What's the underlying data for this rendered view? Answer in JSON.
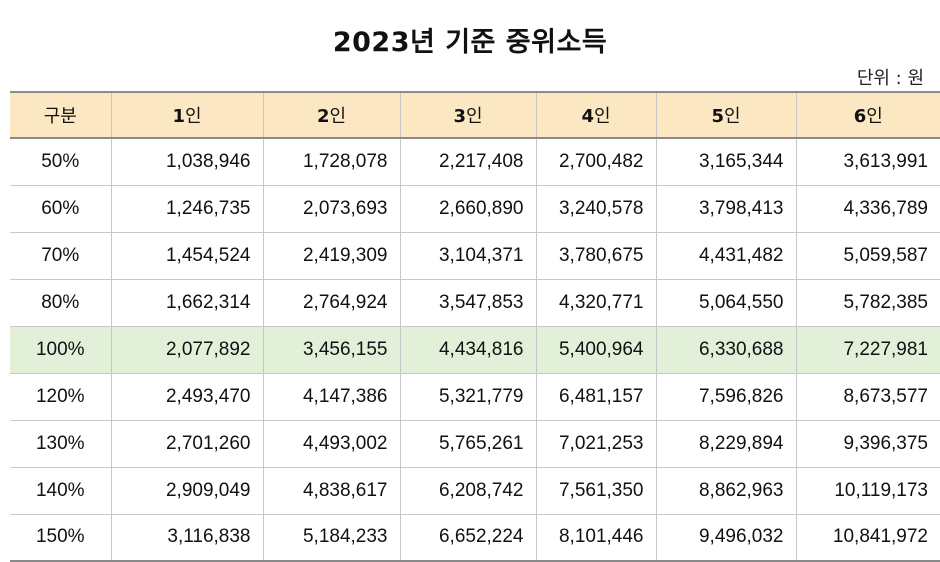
{
  "title": "2023년 기준 중위소득",
  "unit_label": "단위 : 원",
  "colors": {
    "header_bg": "#fbe8c2",
    "highlight_row_bg": "#e2efd9"
  },
  "table": {
    "headers": [
      {
        "text": "구분"
      },
      {
        "num": "1",
        "suffix": "인"
      },
      {
        "num": "2",
        "suffix": "인"
      },
      {
        "num": "3",
        "suffix": "인"
      },
      {
        "num": "4",
        "suffix": "인"
      },
      {
        "num": "5",
        "suffix": "인"
      },
      {
        "num": "6",
        "suffix": "인"
      }
    ],
    "highlighted_row": "100%",
    "rows": [
      {
        "label": "50%",
        "values": [
          "1,038,946",
          "1,728,078",
          "2,217,408",
          "2,700,482",
          "3,165,344",
          "3,613,991"
        ]
      },
      {
        "label": "60%",
        "values": [
          "1,246,735",
          "2,073,693",
          "2,660,890",
          "3,240,578",
          "3,798,413",
          "4,336,789"
        ]
      },
      {
        "label": "70%",
        "values": [
          "1,454,524",
          "2,419,309",
          "3,104,371",
          "3,780,675",
          "4,431,482",
          "5,059,587"
        ]
      },
      {
        "label": "80%",
        "values": [
          "1,662,314",
          "2,764,924",
          "3,547,853",
          "4,320,771",
          "5,064,550",
          "5,782,385"
        ]
      },
      {
        "label": "100%",
        "values": [
          "2,077,892",
          "3,456,155",
          "4,434,816",
          "5,400,964",
          "6,330,688",
          "7,227,981"
        ]
      },
      {
        "label": "120%",
        "values": [
          "2,493,470",
          "4,147,386",
          "5,321,779",
          "6,481,157",
          "7,596,826",
          "8,673,577"
        ]
      },
      {
        "label": "130%",
        "values": [
          "2,701,260",
          "4,493,002",
          "5,765,261",
          "7,021,253",
          "8,229,894",
          "9,396,375"
        ]
      },
      {
        "label": "140%",
        "values": [
          "2,909,049",
          "4,838,617",
          "6,208,742",
          "7,561,350",
          "8,862,963",
          "10,119,173"
        ]
      },
      {
        "label": "150%",
        "values": [
          "3,116,838",
          "5,184,233",
          "6,652,224",
          "8,101,446",
          "9,496,032",
          "10,841,972"
        ]
      }
    ]
  }
}
